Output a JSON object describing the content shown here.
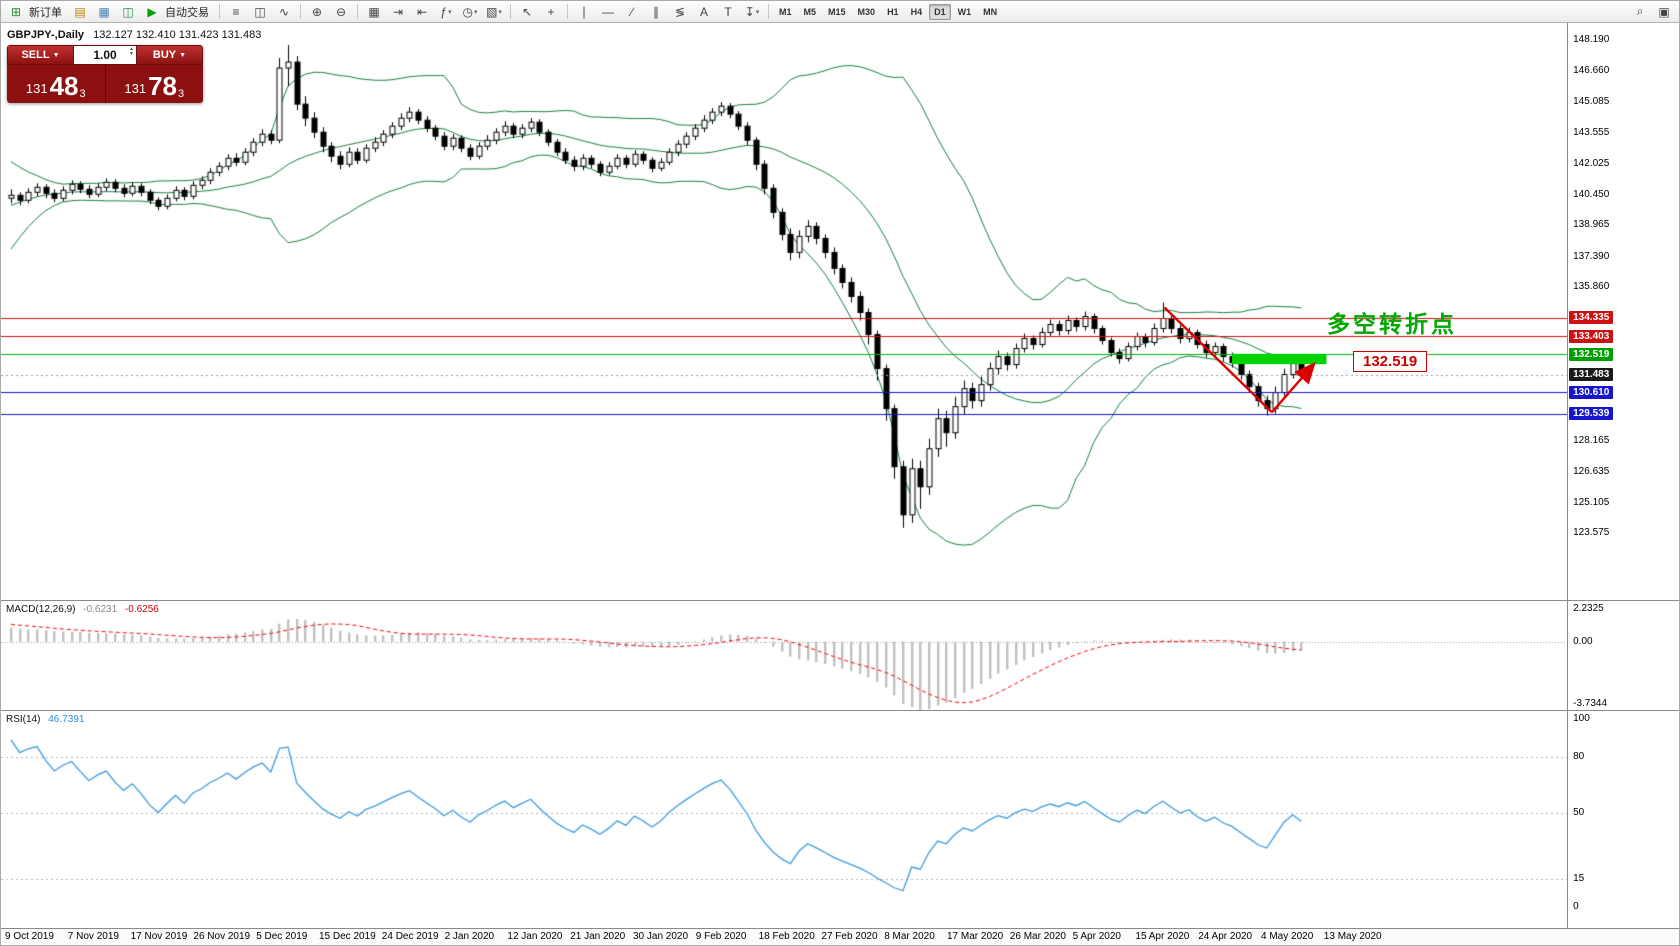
{
  "toolbar": {
    "new_order_label": "新订单",
    "autotrade_label": "自动交易",
    "autotrade_icon": {
      "name": "autotrade-icon",
      "glyph": "▶",
      "color": "#00a000"
    },
    "group1": [
      {
        "name": "new-order-icon",
        "glyph": "⊞",
        "color": "#2e8b2e"
      }
    ],
    "group2": [
      {
        "name": "market-watch-icon",
        "glyph": "▤",
        "color": "#b8860b"
      },
      {
        "name": "data-window-icon",
        "glyph": "▦",
        "color": "#4682b4"
      },
      {
        "name": "navigator-icon",
        "glyph": "◫",
        "color": "#2e8b57"
      }
    ],
    "tools": [
      {
        "sep": true
      },
      {
        "name": "bar-chart-icon",
        "glyph": "≡"
      },
      {
        "name": "candlestick-chart-icon",
        "glyph": "◫"
      },
      {
        "name": "line-chart-icon",
        "glyph": "∿"
      },
      {
        "sep": true
      },
      {
        "name": "zoom-in-icon",
        "glyph": "⊕"
      },
      {
        "name": "zoom-out-icon",
        "glyph": "⊖"
      },
      {
        "sep": true
      },
      {
        "name": "tile-windows-icon",
        "glyph": "▦"
      },
      {
        "name": "auto-scroll-icon",
        "glyph": "⇥"
      },
      {
        "name": "chart-shift-icon",
        "glyph": "⇤"
      },
      {
        "name": "indicators-icon",
        "glyph": "ƒ",
        "caret": true
      },
      {
        "name": "periods-icon",
        "glyph": "◷",
        "caret": true
      },
      {
        "name": "templates-icon",
        "glyph": "▧",
        "caret": true
      },
      {
        "sep": true
      },
      {
        "name": "cursor-icon",
        "glyph": "↖"
      },
      {
        "name": "crosshair-icon",
        "glyph": "+"
      },
      {
        "sep": true
      },
      {
        "name": "vertical-line-icon",
        "glyph": "∣"
      },
      {
        "name": "horizontal-line-icon",
        "glyph": "―"
      },
      {
        "name": "trendline-icon",
        "glyph": "∕"
      },
      {
        "name": "channel-icon",
        "glyph": "∥"
      },
      {
        "name": "fibonacci-icon",
        "glyph": "≶"
      },
      {
        "name": "text-icon",
        "glyph": "A"
      },
      {
        "name": "label-icon",
        "glyph": "T"
      },
      {
        "name": "arrows-icon",
        "glyph": "↧",
        "caret": true
      },
      {
        "sep": true
      }
    ],
    "right_icons": [
      {
        "name": "search-icon",
        "glyph": "⌕"
      },
      {
        "name": "layout-icon",
        "glyph": "▣"
      }
    ],
    "timeframes": [
      "M1",
      "M5",
      "M15",
      "M30",
      "H1",
      "H4",
      "D1",
      "W1",
      "MN"
    ],
    "active_timeframe": "D1"
  },
  "symbol_header": {
    "symbol": "GBPJPY-,Daily",
    "ohlc": "132.127 132.410 131.423 131.483"
  },
  "trade_panel": {
    "sell_label": "SELL",
    "buy_label": "BUY",
    "volume": "1.00",
    "sell_price": {
      "prefix": "131",
      "big": "48",
      "sup": "3"
    },
    "buy_price": {
      "prefix": "131",
      "big": "78",
      "sup": "3"
    }
  },
  "annotations": {
    "turning_point_text": "多空转折点",
    "zone_price_label": "132.519",
    "text_color": "#00a800",
    "line_color": "#dd0000",
    "zone_color": "#00d400",
    "zone_box": {
      "i0": 141.0,
      "i1": 151.9,
      "price_top": 132.53,
      "price_bottom": 132.02
    },
    "trend_down": {
      "i0": 133.2,
      "p0": 134.85,
      "i1": 145.6,
      "p1": 129.62
    },
    "trend_up": {
      "i0": 145.6,
      "p0": 129.62,
      "i1": 150.3,
      "p1": 131.95
    }
  },
  "price_scale": {
    "ticks": [
      "148.190",
      "146.660",
      "145.085",
      "143.555",
      "142.025",
      "140.450",
      "138.965",
      "137.390",
      "135.860",
      "128.165",
      "126.635",
      "125.105",
      "123.575"
    ],
    "badges": [
      {
        "text": "134.335",
        "bg": "#cc1111"
      },
      {
        "text": "133.403",
        "bg": "#cc1111"
      },
      {
        "text": "132.519",
        "bg": "#00a000"
      },
      {
        "text": "131.483",
        "bg": "#1a1a1a"
      },
      {
        "text": "130.610",
        "bg": "#1515cc"
      },
      {
        "text": "129.539",
        "bg": "#1515cc"
      }
    ]
  },
  "macd": {
    "label": "MACD(12,26,9)",
    "value_hist": "-0.6231",
    "value_signal": "-0.6256",
    "scale": [
      "2.2325",
      "0.00",
      "-3.7344"
    ]
  },
  "rsi": {
    "label": "RSI(14)",
    "value": "46.7391",
    "scale": [
      "100",
      "80",
      "50",
      "15",
      "0"
    ],
    "levels": [
      80,
      50,
      15
    ]
  },
  "time_axis": {
    "labels": [
      "9 Oct 2019",
      "7 Nov 2019",
      "17 Nov 2019",
      "26 Nov 2019",
      "5 Dec 2019",
      "15 Dec 2019",
      "24 Dec 2019",
      "2 Jan 2020",
      "12 Jan 2020",
      "21 Jan 2020",
      "30 Jan 2020",
      "9 Feb 2020",
      "18 Feb 2020",
      "27 Feb 2020",
      "8 Mar 2020",
      "17 Mar 2020",
      "26 Mar 2020",
      "5 Apr 2020",
      "15 Apr 2020",
      "24 Apr 2020",
      "4 May 2020",
      "13 May 2020"
    ]
  },
  "chart_data": {
    "type": "candlestick",
    "symbol": "GBPJPY-",
    "period": "Daily",
    "ylim": [
      120.25,
      149.05
    ],
    "last_price": 131.483,
    "colors": {
      "up_fill": "#ffffff",
      "down_fill": "#000000",
      "outline": "#000000",
      "bands": "#15803d",
      "macd_hist": "#c0c0c0",
      "macd_signal": "#ff0000",
      "rsi_line": "#3d9bdd"
    },
    "hlines": [
      {
        "price": 134.335,
        "color": "#cc1111"
      },
      {
        "price": 133.403,
        "color": "#cc1111"
      },
      {
        "price": 132.519,
        "color": "#00b400"
      },
      {
        "price": 130.61,
        "color": "#1515cc"
      },
      {
        "price": 129.539,
        "color": "#1515cc"
      }
    ],
    "indicators": {
      "bollinger": {
        "period": 20,
        "deviation": 2
      },
      "macd": {
        "fast": 12,
        "slow": 26,
        "signal": 9
      },
      "rsi": {
        "period": 14
      }
    },
    "lead_in_closes": [
      136.5,
      137.1,
      137.7,
      138.3,
      138.8,
      139.3,
      139.7,
      140.1,
      140.4,
      140.6,
      140.8,
      140.9,
      140.9,
      140.8,
      140.7,
      140.6,
      140.5,
      140.5,
      140.4,
      140.4
    ],
    "ohlc": [
      [
        140.3,
        140.75,
        140.05,
        140.45
      ],
      [
        140.45,
        140.6,
        139.95,
        140.2
      ],
      [
        140.2,
        140.8,
        140.05,
        140.6
      ],
      [
        140.6,
        141.05,
        140.4,
        140.85
      ],
      [
        140.85,
        141.0,
        140.3,
        140.55
      ],
      [
        140.55,
        140.75,
        140.1,
        140.3
      ],
      [
        140.3,
        140.9,
        140.15,
        140.7
      ],
      [
        140.7,
        141.2,
        140.5,
        141.0
      ],
      [
        141.0,
        141.15,
        140.55,
        140.75
      ],
      [
        140.75,
        140.95,
        140.3,
        140.5
      ],
      [
        140.5,
        141.05,
        140.35,
        140.85
      ],
      [
        140.85,
        141.3,
        140.65,
        141.1
      ],
      [
        141.1,
        141.25,
        140.6,
        140.8
      ],
      [
        140.8,
        141.0,
        140.35,
        140.55
      ],
      [
        140.55,
        141.1,
        140.4,
        140.9
      ],
      [
        140.9,
        141.05,
        140.4,
        140.6
      ],
      [
        140.6,
        140.75,
        140.0,
        140.2
      ],
      [
        140.2,
        140.35,
        139.7,
        139.9
      ],
      [
        139.9,
        140.5,
        139.75,
        140.3
      ],
      [
        140.3,
        140.9,
        140.15,
        140.7
      ],
      [
        140.7,
        140.85,
        140.2,
        140.4
      ],
      [
        140.4,
        141.15,
        140.25,
        140.95
      ],
      [
        140.95,
        141.4,
        140.75,
        141.2
      ],
      [
        141.2,
        141.8,
        141.0,
        141.6
      ],
      [
        141.6,
        142.1,
        141.4,
        141.9
      ],
      [
        141.9,
        142.5,
        141.7,
        142.3
      ],
      [
        142.3,
        142.55,
        141.9,
        142.1
      ],
      [
        142.1,
        142.8,
        141.95,
        142.6
      ],
      [
        142.6,
        143.3,
        142.4,
        143.1
      ],
      [
        143.1,
        143.75,
        142.9,
        143.5
      ],
      [
        143.5,
        143.7,
        143.0,
        143.2
      ],
      [
        143.2,
        147.3,
        143.05,
        146.8
      ],
      [
        146.8,
        147.95,
        145.9,
        147.1
      ],
      [
        147.1,
        147.4,
        144.7,
        145.0
      ],
      [
        145.0,
        145.4,
        143.9,
        144.3
      ],
      [
        144.3,
        144.6,
        143.3,
        143.6
      ],
      [
        143.6,
        143.85,
        142.6,
        142.9
      ],
      [
        142.9,
        143.1,
        142.1,
        142.4
      ],
      [
        142.4,
        142.65,
        141.75,
        142.0
      ],
      [
        142.0,
        142.85,
        141.85,
        142.6
      ],
      [
        142.6,
        142.8,
        142.0,
        142.2
      ],
      [
        142.2,
        143.0,
        142.05,
        142.8
      ],
      [
        142.8,
        143.35,
        142.6,
        143.1
      ],
      [
        143.1,
        143.7,
        142.9,
        143.5
      ],
      [
        143.5,
        144.1,
        143.3,
        143.9
      ],
      [
        143.9,
        144.55,
        143.7,
        144.3
      ],
      [
        144.3,
        144.85,
        144.1,
        144.6
      ],
      [
        144.6,
        144.75,
        144.0,
        144.2
      ],
      [
        144.2,
        144.4,
        143.6,
        143.8
      ],
      [
        143.8,
        143.95,
        143.2,
        143.4
      ],
      [
        143.4,
        143.6,
        142.7,
        142.9
      ],
      [
        142.9,
        143.5,
        142.7,
        143.3
      ],
      [
        143.3,
        143.45,
        142.6,
        142.8
      ],
      [
        142.8,
        143.0,
        142.2,
        142.4
      ],
      [
        142.4,
        143.1,
        142.25,
        142.9
      ],
      [
        142.9,
        143.45,
        142.7,
        143.2
      ],
      [
        143.2,
        143.8,
        143.0,
        143.6
      ],
      [
        143.6,
        144.15,
        143.4,
        143.9
      ],
      [
        143.9,
        144.05,
        143.3,
        143.5
      ],
      [
        143.5,
        144.0,
        143.3,
        143.8
      ],
      [
        143.8,
        144.3,
        143.6,
        144.1
      ],
      [
        144.1,
        144.25,
        143.4,
        143.6
      ],
      [
        143.6,
        143.75,
        142.9,
        143.1
      ],
      [
        143.1,
        143.25,
        142.4,
        142.6
      ],
      [
        142.6,
        142.8,
        142.0,
        142.2
      ],
      [
        142.2,
        142.4,
        141.65,
        141.9
      ],
      [
        141.9,
        142.5,
        141.7,
        142.3
      ],
      [
        142.3,
        142.45,
        141.8,
        142.0
      ],
      [
        142.0,
        142.15,
        141.4,
        141.6
      ],
      [
        141.6,
        142.1,
        141.45,
        141.9
      ],
      [
        141.9,
        142.5,
        141.75,
        142.3
      ],
      [
        142.3,
        142.45,
        141.8,
        142.0
      ],
      [
        142.0,
        142.7,
        141.85,
        142.5
      ],
      [
        142.5,
        142.65,
        142.0,
        142.2
      ],
      [
        142.2,
        142.35,
        141.6,
        141.8
      ],
      [
        141.8,
        142.3,
        141.65,
        142.1
      ],
      [
        142.1,
        142.8,
        141.95,
        142.6
      ],
      [
        142.6,
        143.2,
        142.4,
        143.0
      ],
      [
        143.0,
        143.6,
        142.8,
        143.4
      ],
      [
        143.4,
        144.0,
        143.2,
        143.8
      ],
      [
        143.8,
        144.45,
        143.6,
        144.2
      ],
      [
        144.2,
        144.8,
        144.0,
        144.6
      ],
      [
        144.6,
        145.1,
        144.4,
        144.9
      ],
      [
        144.9,
        145.05,
        144.3,
        144.5
      ],
      [
        144.5,
        144.65,
        143.7,
        143.9
      ],
      [
        143.9,
        144.1,
        142.95,
        143.2
      ],
      [
        143.2,
        143.35,
        141.7,
        142.0
      ],
      [
        142.0,
        142.2,
        140.5,
        140.8
      ],
      [
        140.8,
        141.0,
        139.3,
        139.6
      ],
      [
        139.6,
        139.8,
        138.2,
        138.5
      ],
      [
        138.5,
        138.8,
        137.2,
        137.6
      ],
      [
        137.6,
        138.7,
        137.3,
        138.4
      ],
      [
        138.4,
        139.2,
        138.1,
        138.9
      ],
      [
        138.9,
        139.1,
        138.0,
        138.3
      ],
      [
        138.3,
        138.5,
        137.3,
        137.6
      ],
      [
        137.6,
        137.85,
        136.5,
        136.8
      ],
      [
        136.8,
        137.0,
        135.8,
        136.1
      ],
      [
        136.1,
        136.35,
        135.1,
        135.4
      ],
      [
        135.4,
        135.65,
        134.2,
        134.6
      ],
      [
        134.6,
        134.8,
        133.0,
        133.5
      ],
      [
        133.5,
        133.7,
        131.2,
        131.8
      ],
      [
        131.8,
        132.0,
        129.2,
        129.8
      ],
      [
        129.8,
        130.0,
        126.3,
        126.9
      ],
      [
        126.9,
        127.2,
        123.85,
        124.5
      ],
      [
        124.5,
        127.3,
        124.1,
        126.8
      ],
      [
        126.8,
        127.2,
        124.8,
        125.9
      ],
      [
        125.9,
        128.3,
        125.5,
        127.8
      ],
      [
        127.8,
        129.8,
        127.4,
        129.3
      ],
      [
        129.3,
        129.7,
        127.9,
        128.6
      ],
      [
        128.6,
        130.4,
        128.3,
        129.9
      ],
      [
        129.9,
        131.2,
        129.5,
        130.8
      ],
      [
        130.8,
        131.1,
        129.8,
        130.2
      ],
      [
        130.2,
        131.4,
        129.9,
        131.0
      ],
      [
        131.0,
        132.1,
        130.7,
        131.8
      ],
      [
        131.8,
        132.7,
        131.5,
        132.4
      ],
      [
        132.4,
        132.6,
        131.7,
        132.0
      ],
      [
        132.0,
        133.05,
        131.8,
        132.8
      ],
      [
        132.8,
        133.55,
        132.6,
        133.3
      ],
      [
        133.3,
        133.45,
        132.75,
        133.0
      ],
      [
        133.0,
        133.85,
        132.85,
        133.6
      ],
      [
        133.6,
        134.25,
        133.4,
        134.0
      ],
      [
        134.0,
        134.2,
        133.45,
        133.7
      ],
      [
        133.7,
        134.45,
        133.5,
        134.2
      ],
      [
        134.2,
        134.35,
        133.65,
        133.9
      ],
      [
        133.9,
        134.65,
        133.7,
        134.4
      ],
      [
        134.4,
        134.55,
        133.55,
        133.8
      ],
      [
        133.8,
        133.95,
        133.0,
        133.2
      ],
      [
        133.2,
        133.35,
        132.4,
        132.6
      ],
      [
        132.6,
        132.8,
        132.05,
        132.3
      ],
      [
        132.3,
        133.1,
        132.15,
        132.9
      ],
      [
        132.9,
        133.6,
        132.7,
        133.4
      ],
      [
        133.4,
        133.55,
        132.85,
        133.1
      ],
      [
        133.1,
        134.05,
        132.95,
        133.8
      ],
      [
        133.8,
        135.1,
        133.6,
        134.3
      ],
      [
        134.3,
        134.5,
        133.55,
        133.8
      ],
      [
        133.8,
        134.0,
        133.05,
        133.3
      ],
      [
        133.3,
        133.85,
        133.1,
        133.6
      ],
      [
        133.6,
        133.75,
        132.8,
        133.0
      ],
      [
        133.0,
        133.2,
        132.35,
        132.6
      ],
      [
        132.6,
        133.1,
        132.4,
        132.9
      ],
      [
        132.9,
        133.05,
        132.15,
        132.4
      ],
      [
        132.4,
        132.6,
        131.85,
        132.1
      ],
      [
        132.1,
        132.25,
        131.25,
        131.5
      ],
      [
        131.5,
        131.7,
        130.6,
        130.9
      ],
      [
        130.9,
        131.1,
        129.9,
        130.2
      ],
      [
        130.2,
        130.45,
        129.45,
        129.8
      ],
      [
        129.8,
        130.9,
        129.55,
        130.6
      ],
      [
        130.6,
        131.8,
        130.4,
        131.5
      ],
      [
        131.5,
        132.35,
        131.3,
        132.1
      ],
      [
        132.127,
        132.41,
        131.423,
        131.483
      ]
    ]
  }
}
